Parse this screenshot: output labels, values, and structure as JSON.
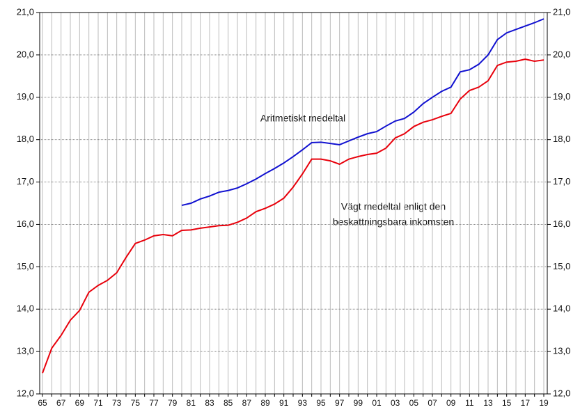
{
  "chart_data": {
    "type": "line",
    "categories": [
      "65",
      null,
      "67",
      null,
      "69",
      null,
      "71",
      null,
      "73",
      null,
      "75",
      null,
      "77",
      null,
      "79",
      null,
      "81",
      null,
      "83",
      null,
      "85",
      null,
      "87",
      null,
      "89",
      null,
      "91",
      null,
      "93",
      null,
      "95",
      null,
      "97",
      null,
      "99",
      null,
      "01",
      null,
      "03",
      null,
      "05",
      null,
      "07",
      null,
      "09",
      null,
      "11",
      null,
      "13",
      null,
      "15",
      null,
      "17",
      null,
      "19"
    ],
    "series": [
      {
        "name": "Vägt medeltal enligt den beskattningsbara inkomsten",
        "color": "#e8000b",
        "values": [
          12.49,
          13.08,
          13.38,
          13.74,
          13.97,
          14.4,
          14.56,
          14.68,
          14.86,
          15.22,
          15.55,
          15.63,
          15.73,
          15.76,
          15.73,
          15.86,
          15.87,
          15.91,
          15.94,
          15.97,
          15.98,
          16.05,
          16.15,
          16.3,
          16.38,
          16.48,
          16.62,
          16.88,
          17.19,
          17.54,
          17.54,
          17.5,
          17.42,
          17.54,
          17.6,
          17.65,
          17.68,
          17.8,
          18.04,
          18.14,
          18.31,
          18.41,
          18.47,
          18.55,
          18.62,
          18.96,
          19.16,
          19.24,
          19.39,
          19.75,
          19.83,
          19.85,
          19.9,
          19.85,
          19.88
        ]
      },
      {
        "name": "Aritmetiskt medeltal",
        "color": "#1010d0",
        "values": [
          null,
          null,
          null,
          null,
          null,
          null,
          null,
          null,
          null,
          null,
          null,
          null,
          null,
          null,
          null,
          16.45,
          16.5,
          16.6,
          16.67,
          16.76,
          16.8,
          16.86,
          16.96,
          17.07,
          17.2,
          17.32,
          17.45,
          17.6,
          17.76,
          17.93,
          17.94,
          17.91,
          17.88,
          17.97,
          18.06,
          18.14,
          18.19,
          18.32,
          18.44,
          18.5,
          18.65,
          18.85,
          19.0,
          19.14,
          19.24,
          19.6,
          19.65,
          19.78,
          20.0,
          20.36,
          20.52,
          20.6,
          20.68,
          20.76,
          20.85
        ]
      }
    ],
    "annotations": [
      {
        "text": "Aritmetiskt medeltal",
        "color": "#1010d0"
      },
      {
        "text": "Vägt medeltal enligt den",
        "color": "#e8000b"
      },
      {
        "text": "beskattningsbara inkomsten",
        "color": "#e8000b"
      }
    ],
    "ylim": [
      12,
      21
    ],
    "yticks": [
      {
        "value": 12,
        "label": "12,0"
      },
      {
        "value": 13,
        "label": "13,0"
      },
      {
        "value": 14,
        "label": "14,0"
      },
      {
        "value": 15,
        "label": "15,0"
      },
      {
        "value": 16,
        "label": "16,0"
      },
      {
        "value": 17,
        "label": "17,0"
      },
      {
        "value": 18,
        "label": "18,0"
      },
      {
        "value": 19,
        "label": "19,0"
      },
      {
        "value": 20,
        "label": "20,0"
      },
      {
        "value": 21,
        "label": "21,0"
      }
    ],
    "y2lim": [
      12,
      21
    ],
    "y2ticks": [
      {
        "value": 12,
        "label": "12,0"
      },
      {
        "value": 13,
        "label": "13,0"
      },
      {
        "value": 14,
        "label": "14,0"
      },
      {
        "value": 15,
        "label": "15,0"
      },
      {
        "value": 16,
        "label": "16,0"
      },
      {
        "value": 17,
        "label": "17,0"
      },
      {
        "value": 18,
        "label": "18,0"
      },
      {
        "value": 19,
        "label": "19,0"
      },
      {
        "value": 20,
        "label": "20,0"
      },
      {
        "value": 21,
        "label": "21,0"
      }
    ],
    "grid": true
  }
}
